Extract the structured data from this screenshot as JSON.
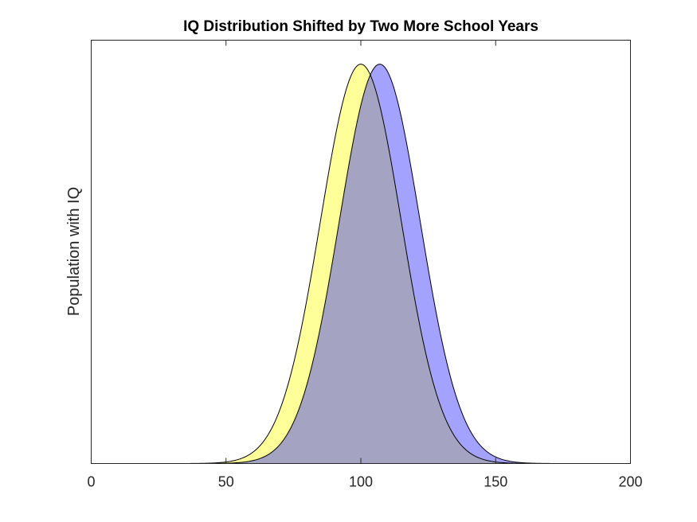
{
  "chart_data": {
    "type": "area",
    "title": "IQ Distribution Shifted by Two More School Years",
    "xlabel": "",
    "ylabel": "Population with IQ",
    "xlim": [
      0,
      200
    ],
    "ylim": [
      0,
      1.06
    ],
    "xticks": [
      0,
      50,
      100,
      150,
      200
    ],
    "xtick_labels": [
      "0",
      "50",
      "100",
      "150",
      "200"
    ],
    "yticks": [],
    "grid": false,
    "legend": "none",
    "series": [
      {
        "distribution": "normal",
        "mean": 100,
        "std": 15,
        "peak": 1,
        "fill_color": "#ffff99",
        "edge_color": "#000000"
      },
      {
        "distribution": "normal",
        "mean": 107,
        "std": 15,
        "peak": 1,
        "fill_color": "#a3a3ff",
        "edge_color": "#000000"
      }
    ],
    "overlap_color": "#a4a4c2"
  }
}
